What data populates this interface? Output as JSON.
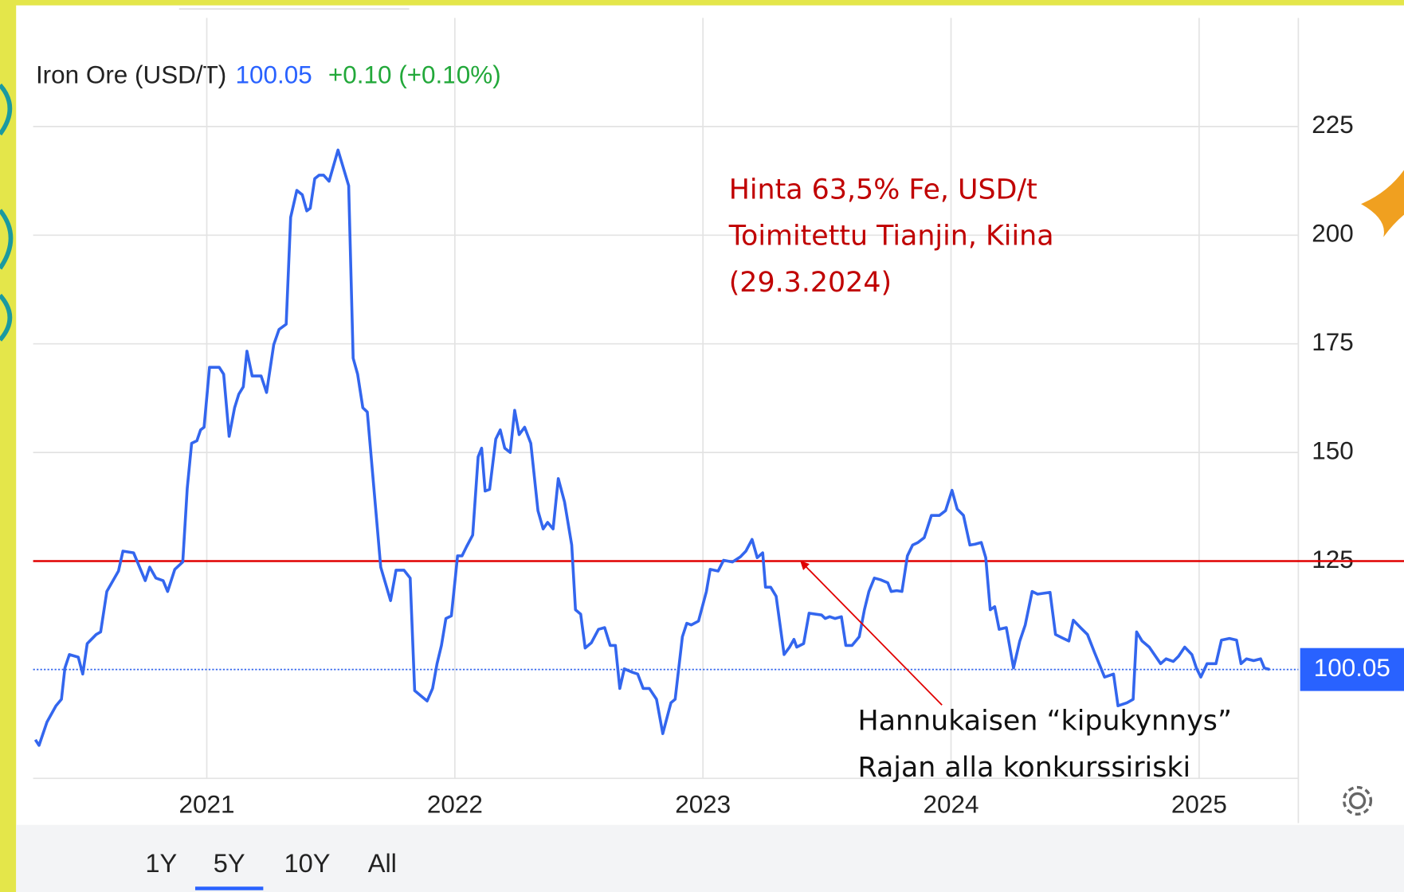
{
  "chart_data": {
    "type": "line",
    "last_price": 100.05,
    "change": "+0.10 (+0.10%)",
    "annotation": [
      "Hinta 63,5% Fe, USD/t",
      "Toimitettu Tianjin, Kiina",
      "(29.3.2024)"
    ],
    "threshold": 125,
    "threshold_note": [
      "Hannukaisen “kipukynnys”",
      "Rajan alla konkurssiriski"
    ],
    "threshold_color": "#e00000",
    "annotation_color": "#c00000",
    "range_buttons": [
      "1Y",
      "5Y",
      "10Y",
      "All"
    ],
    "selected_range": "5Y",
    "xlim": [
      2020.3,
      2025.4
    ],
    "xticks": [
      2021,
      2022,
      2023,
      2024,
      2025
    ],
    "ylim": [
      75,
      250
    ],
    "yticks": [
      125,
      150,
      175,
      200,
      225
    ],
    "grid": true,
    "x": [
      2020.309,
      2020.324,
      2020.356,
      2020.392,
      2020.414,
      2020.428,
      2020.446,
      2020.482,
      2020.5,
      2020.518,
      2020.554,
      2020.572,
      2020.597,
      2020.644,
      2020.662,
      2020.705,
      2020.752,
      2020.77,
      2020.795,
      2020.824,
      2020.842,
      2020.871,
      2020.903,
      2020.921,
      2020.939,
      2020.96,
      2020.975,
      2020.989,
      2021.011,
      2021.05,
      2021.068,
      2021.09,
      2021.112,
      2021.129,
      2021.147,
      2021.162,
      2021.183,
      2021.219,
      2021.241,
      2021.27,
      2021.291,
      2021.32,
      2021.338,
      2021.363,
      2021.385,
      2021.403,
      2021.417,
      2021.435,
      2021.453,
      2021.471,
      2021.493,
      2021.529,
      2021.572,
      2021.59,
      2021.608,
      2021.629,
      2021.647,
      2021.701,
      2021.741,
      2021.763,
      2021.795,
      2021.82,
      2021.838,
      2021.867,
      2021.888,
      2021.91,
      2021.928,
      2021.946,
      2021.964,
      2021.986,
      2022.011,
      2022.029,
      2022.047,
      2022.072,
      2022.094,
      2022.108,
      2022.122,
      2022.14,
      2022.165,
      2022.183,
      2022.201,
      2022.223,
      2022.241,
      2022.259,
      2022.281,
      2022.306,
      2022.335,
      2022.356,
      2022.374,
      2022.396,
      2022.417,
      2022.442,
      2022.471,
      2022.486,
      2022.507,
      2022.525,
      2022.55,
      2022.579,
      2022.604,
      2022.626,
      2022.647,
      2022.665,
      2022.683,
      2022.716,
      2022.737,
      2022.759,
      2022.784,
      2022.813,
      2022.838,
      2022.871,
      2022.888,
      2022.917,
      2022.935,
      2022.953,
      2022.982,
      2023.014,
      2023.029,
      2023.061,
      2023.083,
      2023.119,
      2023.151,
      2023.173,
      2023.198,
      2023.219,
      2023.241,
      2023.252,
      2023.273,
      2023.295,
      2023.327,
      2023.349,
      2023.367,
      2023.378,
      2023.406,
      2023.428,
      2023.478,
      2023.493,
      2023.511,
      2023.532,
      2023.558,
      2023.576,
      2023.601,
      2023.63,
      2023.651,
      2023.669,
      2023.691,
      2023.716,
      2023.745,
      2023.759,
      2023.781,
      2023.802,
      2023.824,
      2023.845,
      2023.867,
      2023.892,
      2023.921,
      2023.953,
      2023.978,
      2024.004,
      2024.025,
      2024.05,
      2024.076,
      2024.097,
      2024.122,
      2024.14,
      2024.158,
      2024.176,
      2024.194,
      2024.223,
      2024.252,
      2024.277,
      2024.299,
      2024.327,
      2024.349,
      2024.374,
      2024.399,
      2024.421,
      2024.453,
      2024.475,
      2024.493,
      2024.522,
      2024.55,
      2024.579,
      2024.619,
      2024.655,
      2024.673,
      2024.709,
      2024.734,
      2024.748,
      2024.77,
      2024.799,
      2024.827,
      2024.845,
      2024.867,
      2024.896,
      2024.917,
      2024.942,
      2024.971,
      2024.989,
      2025.007,
      2025.032,
      2025.068,
      2025.09,
      2025.122,
      2025.151,
      2025.169,
      2025.191,
      2025.22,
      2025.248,
      2025.263,
      2025.284
    ],
    "series": [
      {
        "name": "Iron Ore (USD/T)",
        "color": "#3366ee",
        "values": [
          83.9,
          82.6,
          88.0,
          91.7,
          93.2,
          100.4,
          103.5,
          102.9,
          99.0,
          106.0,
          108.1,
          108.7,
          118.0,
          122.7,
          127.3,
          126.9,
          120.5,
          123.6,
          121.1,
          120.5,
          118.0,
          123.1,
          124.8,
          141.7,
          152.1,
          152.7,
          155.2,
          155.8,
          169.6,
          169.6,
          168.0,
          153.7,
          160.3,
          163.4,
          165.1,
          173.3,
          167.6,
          167.6,
          163.8,
          174.8,
          178.3,
          179.5,
          204.1,
          210.3,
          209.3,
          205.6,
          206.2,
          213.0,
          213.8,
          213.8,
          212.4,
          219.6,
          211.4,
          171.7,
          168.0,
          160.3,
          159.3,
          123.6,
          115.9,
          122.9,
          122.9,
          121.1,
          95.2,
          93.8,
          92.8,
          95.7,
          101.4,
          105.6,
          111.8,
          112.4,
          126.2,
          126.2,
          128.3,
          131.0,
          149.0,
          151.0,
          141.1,
          141.5,
          153.1,
          155.2,
          151.0,
          150.0,
          159.7,
          154.1,
          155.8,
          152.1,
          136.6,
          132.4,
          133.9,
          132.4,
          144.0,
          138.6,
          128.7,
          113.8,
          112.8,
          105.0,
          106.2,
          109.3,
          109.7,
          105.6,
          105.6,
          95.7,
          100.2,
          99.4,
          99.0,
          95.7,
          95.7,
          93.2,
          85.3,
          92.4,
          93.2,
          107.6,
          110.7,
          110.3,
          111.2,
          118.0,
          123.1,
          122.7,
          125.2,
          124.8,
          126.0,
          127.3,
          130.0,
          125.8,
          126.9,
          119.0,
          119.0,
          116.9,
          103.5,
          105.2,
          107.0,
          105.2,
          106.0,
          113.0,
          112.6,
          111.8,
          112.2,
          111.8,
          112.2,
          105.6,
          105.6,
          107.6,
          113.8,
          118.0,
          121.1,
          120.7,
          120.0,
          118.0,
          118.2,
          118.0,
          126.2,
          128.7,
          129.3,
          130.4,
          135.5,
          135.5,
          136.6,
          141.3,
          137.0,
          135.5,
          128.7,
          128.9,
          129.3,
          125.8,
          113.8,
          114.5,
          109.3,
          109.7,
          100.4,
          106.6,
          110.3,
          118.0,
          117.4,
          117.6,
          117.8,
          108.1,
          107.2,
          106.6,
          111.4,
          109.7,
          108.1,
          103.9,
          98.3,
          99.0,
          91.7,
          92.4,
          93.2,
          108.7,
          106.6,
          105.2,
          102.9,
          101.4,
          102.5,
          101.9,
          103.1,
          105.2,
          103.5,
          100.4,
          98.3,
          101.4,
          101.4,
          106.8,
          107.2,
          106.8,
          101.4,
          102.5,
          102.1,
          102.5,
          100.4,
          100.05
        ]
      }
    ]
  }
}
